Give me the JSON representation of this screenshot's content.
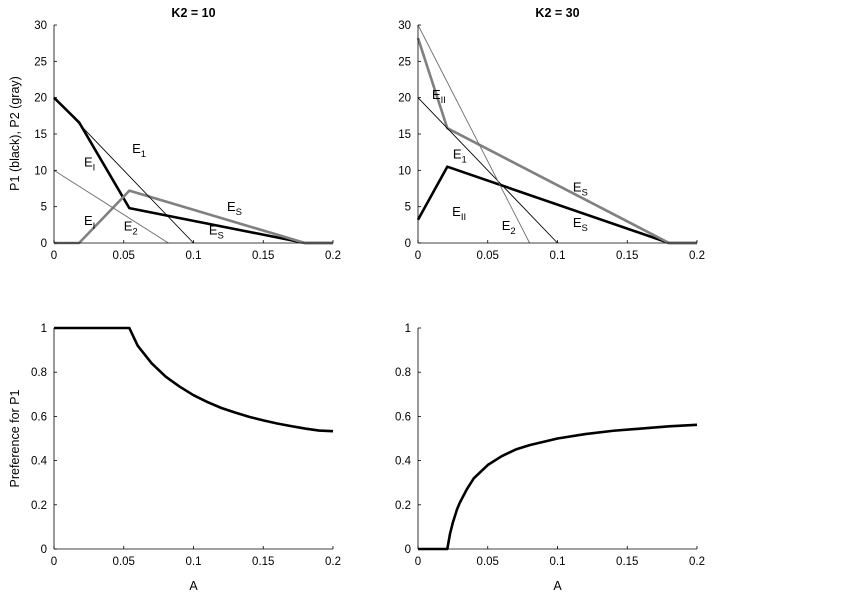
{
  "figure": {
    "colors": {
      "black": "#000000",
      "gray": "#808080",
      "thin_gray": "#6e6e6e"
    }
  },
  "chart_data": [
    {
      "type": "line",
      "panel": "top-left",
      "title": "K2 = 10",
      "xlabel": "",
      "ylabel": "P1 (black), P2 (gray)",
      "xlim": [
        0,
        0.2
      ],
      "ylim": [
        0,
        30
      ],
      "xticks": [
        0,
        0.05,
        0.1,
        0.15,
        0.2
      ],
      "xtick_labels": [
        "0",
        "0.05",
        "0.1",
        "0.15",
        "0.2"
      ],
      "yticks": [
        0,
        5,
        10,
        15,
        20,
        25,
        30
      ],
      "ytick_labels": [
        "0",
        "5",
        "10",
        "15",
        "20",
        "25",
        "30"
      ],
      "grid": false,
      "series": [
        {
          "style": "thick",
          "color": "#000000",
          "x": [
            0,
            0.018,
            0.054,
            0.18,
            0.2
          ],
          "y": [
            20,
            16.6,
            4.8,
            0,
            0
          ]
        },
        {
          "style": "thick",
          "color": "#808080",
          "x": [
            0,
            0.018,
            0.054,
            0.18,
            0.2
          ],
          "y": [
            0,
            0,
            7.2,
            0,
            0
          ]
        },
        {
          "style": "thin",
          "color": "#000000",
          "x": [
            0,
            0.1
          ],
          "y": [
            20,
            0
          ]
        },
        {
          "style": "thin",
          "color": "#6e6e6e",
          "x": [
            0,
            0.082
          ],
          "y": [
            10,
            0
          ]
        }
      ],
      "annotations": [
        {
          "base": "E",
          "sub": "I",
          "x": 0.0215,
          "y": 10.5
        },
        {
          "base": "E",
          "sub": "1",
          "x": 0.056,
          "y": 12.4
        },
        {
          "base": "E",
          "sub": "I",
          "x": 0.0215,
          "y": 2.5
        },
        {
          "base": "E",
          "sub": "2",
          "x": 0.05,
          "y": 1.7
        },
        {
          "base": "E",
          "sub": "S",
          "x": 0.124,
          "y": 4.4
        },
        {
          "base": "E",
          "sub": "S",
          "x": 0.111,
          "y": 1.2
        }
      ]
    },
    {
      "type": "line",
      "panel": "top-right",
      "title": "K2 = 30",
      "xlabel": "",
      "ylabel": "",
      "xlim": [
        0,
        0.2
      ],
      "ylim": [
        0,
        30
      ],
      "xticks": [
        0,
        0.05,
        0.1,
        0.15,
        0.2
      ],
      "xtick_labels": [
        "0",
        "0.05",
        "0.1",
        "0.15",
        "0.2"
      ],
      "yticks": [
        0,
        5,
        10,
        15,
        20,
        25,
        30
      ],
      "ytick_labels": [
        "0",
        "5",
        "10",
        "15",
        "20",
        "25",
        "30"
      ],
      "grid": false,
      "series": [
        {
          "style": "thick",
          "color": "#000000",
          "x": [
            0,
            0.021,
            0.18,
            0.2
          ],
          "y": [
            3.2,
            10.5,
            0,
            0
          ]
        },
        {
          "style": "thick",
          "color": "#808080",
          "x": [
            0,
            0.021,
            0.18,
            0.2
          ],
          "y": [
            28.2,
            15.8,
            0,
            0
          ]
        },
        {
          "style": "thin",
          "color": "#000000",
          "x": [
            0,
            0.1
          ],
          "y": [
            20,
            0
          ]
        },
        {
          "style": "thin",
          "color": "#6e6e6e",
          "x": [
            0,
            0.08
          ],
          "y": [
            30,
            0
          ]
        }
      ],
      "annotations": [
        {
          "base": "E",
          "sub": "II",
          "x": 0.01,
          "y": 19.8
        },
        {
          "base": "E",
          "sub": "1",
          "x": 0.025,
          "y": 11.6
        },
        {
          "base": "E",
          "sub": "II",
          "x": 0.0245,
          "y": 3.7
        },
        {
          "base": "E",
          "sub": "2",
          "x": 0.06,
          "y": 1.8
        },
        {
          "base": "E",
          "sub": "S",
          "x": 0.111,
          "y": 7.1
        },
        {
          "base": "E",
          "sub": "S",
          "x": 0.111,
          "y": 2.2
        }
      ]
    },
    {
      "type": "line",
      "panel": "bottom-left",
      "title": "",
      "xlabel": "A",
      "ylabel": "Preference for P1",
      "xlim": [
        0,
        0.2
      ],
      "ylim": [
        0,
        1
      ],
      "xticks": [
        0,
        0.05,
        0.1,
        0.15,
        0.2
      ],
      "xtick_labels": [
        "0",
        "0.05",
        "0.1",
        "0.15",
        "0.2"
      ],
      "yticks": [
        0,
        0.2,
        0.4,
        0.6,
        0.8,
        1
      ],
      "ytick_labels": [
        "0",
        "0.2",
        "0.4",
        "0.6",
        "0.8",
        "1"
      ],
      "grid": false,
      "series": [
        {
          "style": "thick",
          "color": "#000000",
          "x": [
            0,
            0.054,
            0.06,
            0.07,
            0.08,
            0.09,
            0.1,
            0.11,
            0.12,
            0.13,
            0.14,
            0.15,
            0.16,
            0.17,
            0.18,
            0.19,
            0.2
          ],
          "y": [
            1,
            1,
            0.92,
            0.84,
            0.78,
            0.735,
            0.696,
            0.665,
            0.638,
            0.617,
            0.598,
            0.582,
            0.568,
            0.556,
            0.545,
            0.536,
            0.533
          ]
        }
      ]
    },
    {
      "type": "line",
      "panel": "bottom-right",
      "title": "",
      "xlabel": "A",
      "ylabel": "",
      "xlim": [
        0,
        0.2
      ],
      "ylim": [
        0,
        1
      ],
      "xticks": [
        0,
        0.05,
        0.1,
        0.15,
        0.2
      ],
      "xtick_labels": [
        "0",
        "0.05",
        "0.1",
        "0.15",
        "0.2"
      ],
      "yticks": [
        0,
        0.2,
        0.4,
        0.6,
        0.8,
        1
      ],
      "ytick_labels": [
        "0",
        "0.2",
        "0.4",
        "0.6",
        "0.8",
        "1"
      ],
      "grid": false,
      "series": [
        {
          "style": "thick",
          "color": "#000000",
          "x": [
            0,
            0.021,
            0.023,
            0.025,
            0.028,
            0.03,
            0.035,
            0.04,
            0.05,
            0.06,
            0.07,
            0.08,
            0.1,
            0.12,
            0.14,
            0.16,
            0.18,
            0.2
          ],
          "y": [
            0,
            0,
            0.07,
            0.12,
            0.18,
            0.21,
            0.27,
            0.32,
            0.38,
            0.42,
            0.45,
            0.47,
            0.5,
            0.52,
            0.535,
            0.545,
            0.555,
            0.562
          ]
        }
      ]
    }
  ]
}
